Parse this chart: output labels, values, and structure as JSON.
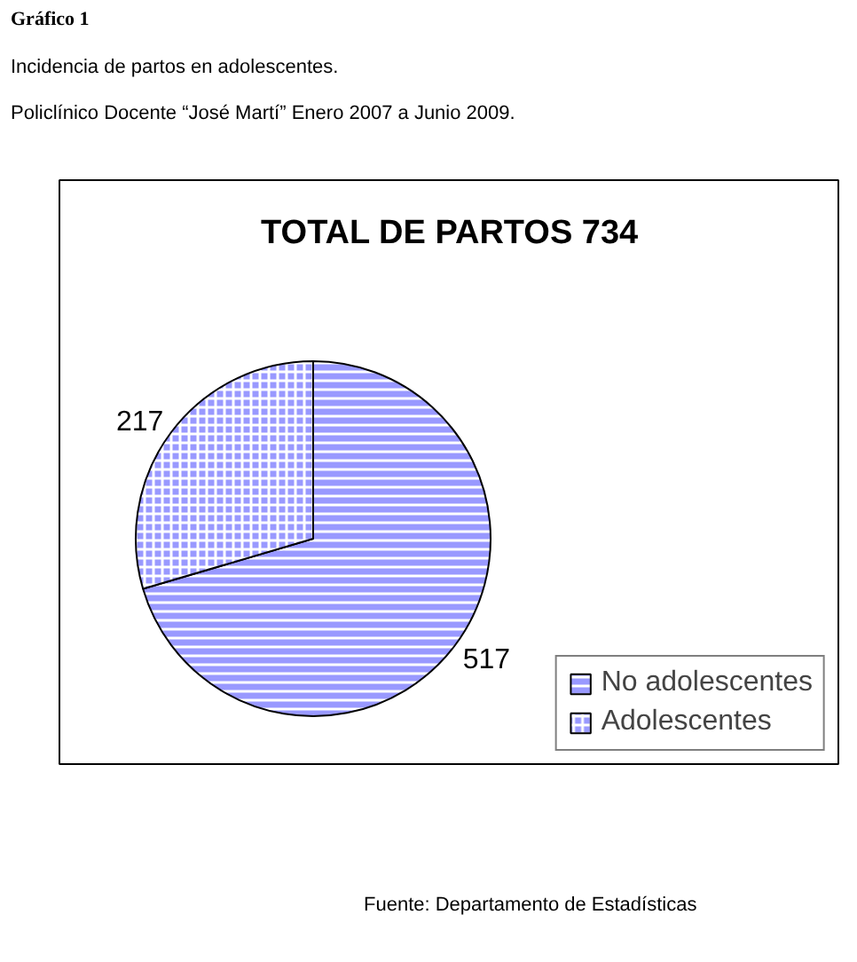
{
  "chart_data": {
    "type": "pie",
    "title": "TOTAL DE PARTOS 734",
    "categories": [
      "No adolescentes",
      "Adolescentes"
    ],
    "values": [
      517,
      217
    ],
    "colors": [
      "#9999ff",
      "#9999ff"
    ],
    "data_labels": true,
    "legend": "bottom right",
    "annotations": [
      "Gráfico 1",
      "Incidencia de partos en adolescentes.",
      "Policlínico Docente “José Martí” Enero 2007 a Junio 2009.",
      "Fuente: Departamento de Estadísticas"
    ]
  }
}
